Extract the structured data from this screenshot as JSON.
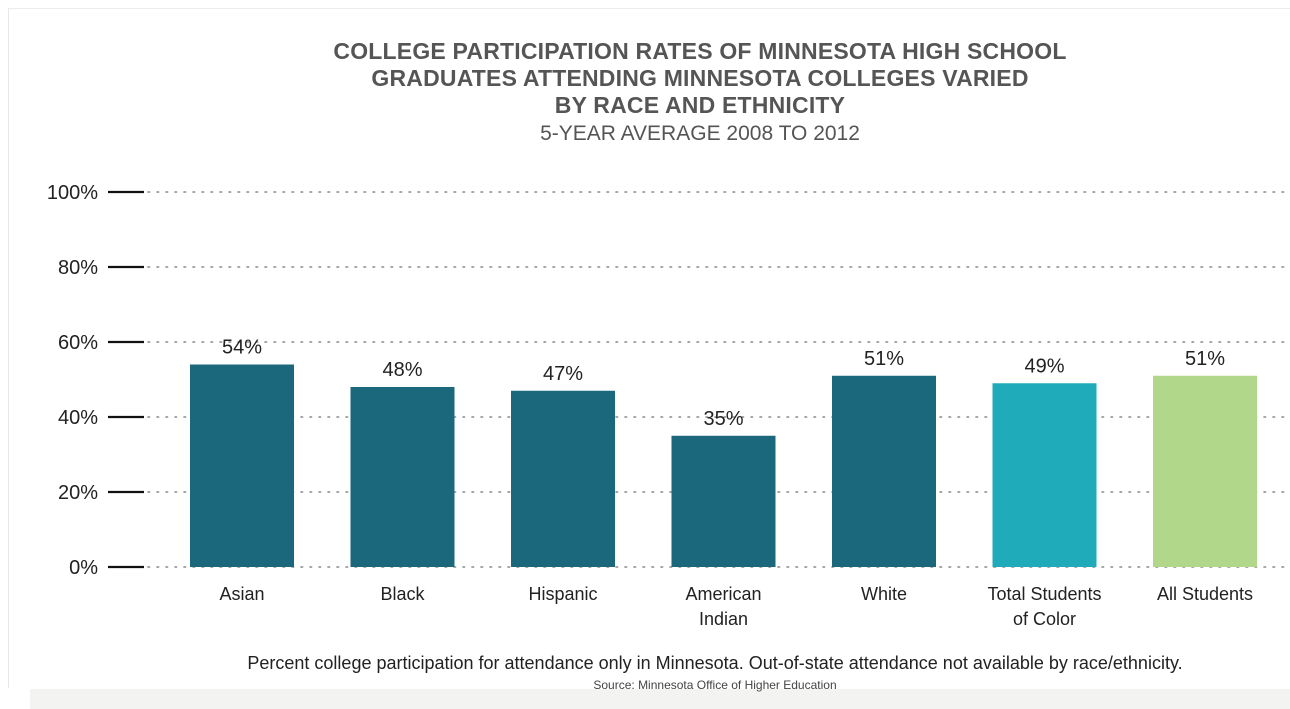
{
  "chart_data": {
    "type": "bar",
    "title_lines": [
      "COLLEGE PARTICIPATION RATES OF MINNESOTA HIGH SCHOOL",
      "GRADUATES ATTENDING MINNESOTA COLLEGES VARIED",
      "BY RACE AND ETHNICITY"
    ],
    "subtitle": "5-YEAR AVERAGE 2008 TO 2012",
    "categories": [
      [
        "Asian"
      ],
      [
        "Black"
      ],
      [
        "Hispanic"
      ],
      [
        "American",
        "Indian"
      ],
      [
        "White"
      ],
      [
        "Total Students",
        "of Color"
      ],
      [
        "All Students"
      ]
    ],
    "values": [
      54,
      48,
      47,
      35,
      51,
      49,
      51
    ],
    "value_labels": [
      "54%",
      "48%",
      "47%",
      "35%",
      "51%",
      "49%",
      "51%"
    ],
    "bar_colors": [
      "#1b687d",
      "#1b687d",
      "#1b687d",
      "#1b687d",
      "#1b687d",
      "#20abba",
      "#b1d78a"
    ],
    "yticks": [
      "0%",
      "20%",
      "40%",
      "60%",
      "80%",
      "100%"
    ],
    "ylim": [
      0,
      100
    ],
    "grid": "dotted horizontal",
    "xlabel": "",
    "ylabel": ""
  },
  "footnote": "Percent college participation for attendance only in Minnesota. Out-of-state attendance not available by race/ethnicity.",
  "source": "Source: Minnesota Office of Higher Education"
}
